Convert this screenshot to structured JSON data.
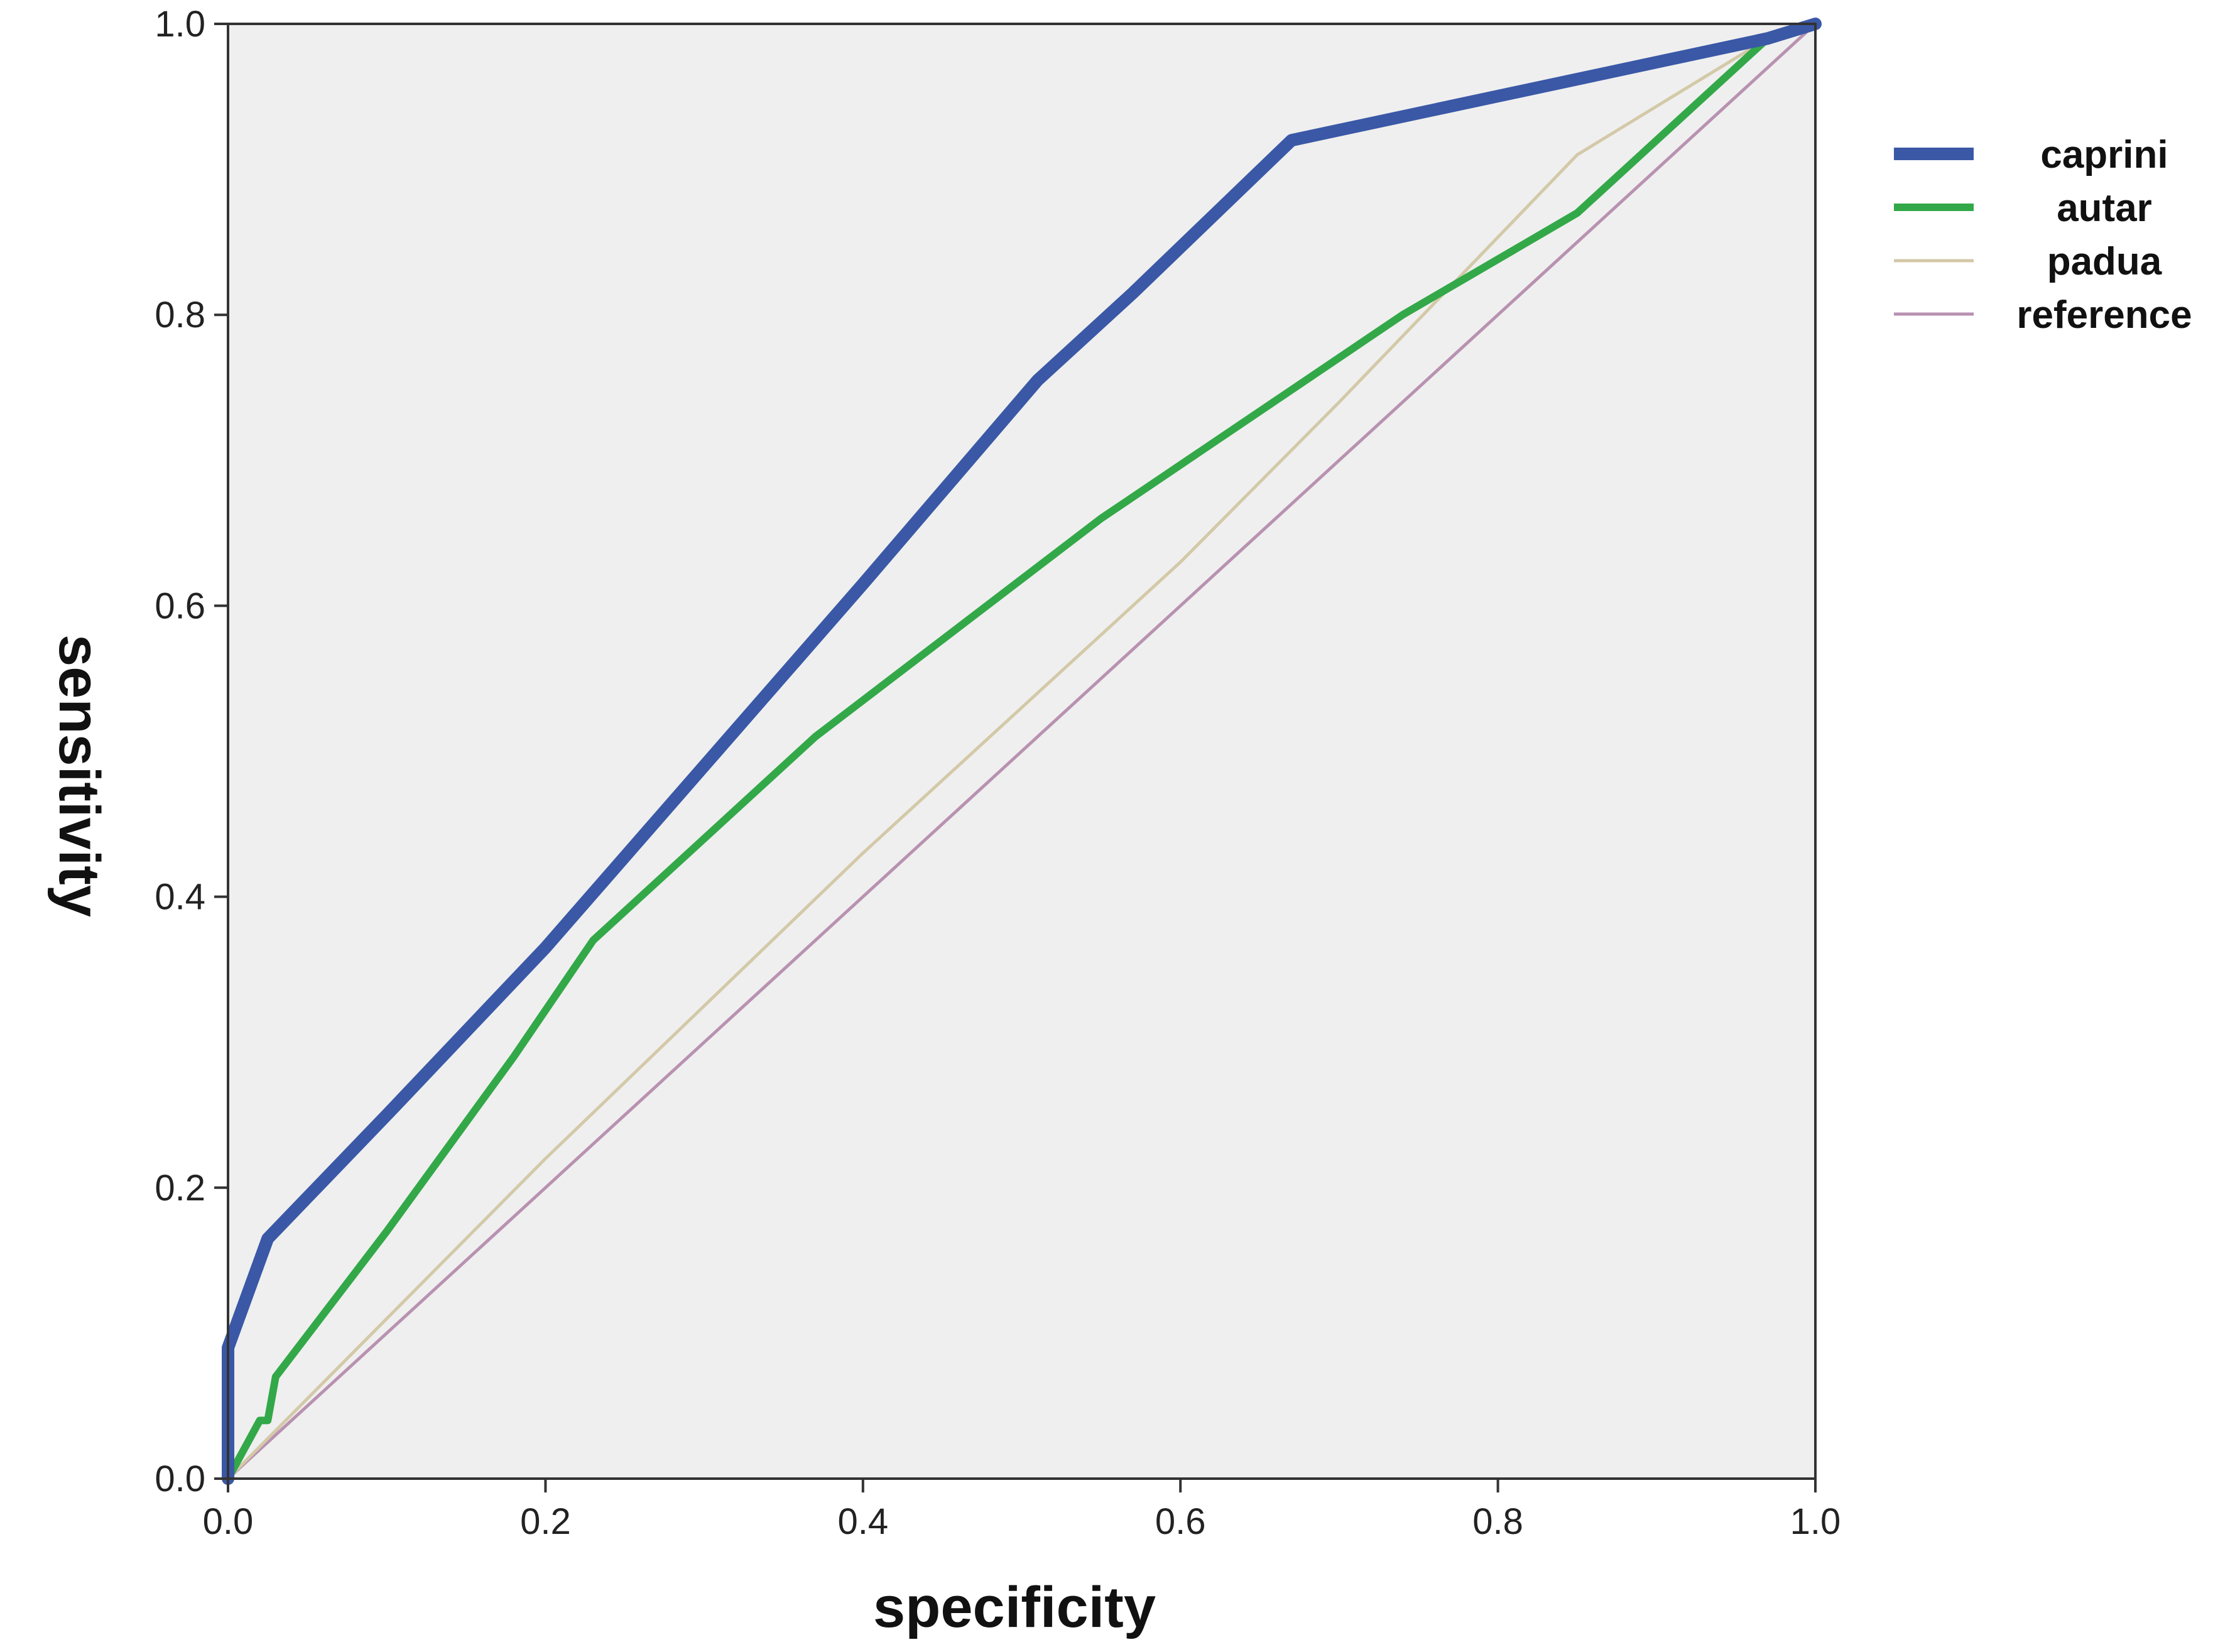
{
  "chart_data": {
    "type": "line",
    "title": "",
    "xlabel": "specificity",
    "ylabel": "sensitivity",
    "xlim": [
      0,
      1
    ],
    "ylim": [
      0,
      1
    ],
    "x_ticks": [
      0.0,
      0.2,
      0.4,
      0.6,
      0.8,
      1.0
    ],
    "y_ticks": [
      0.0,
      0.2,
      0.4,
      0.6,
      0.8,
      1.0
    ],
    "x_tick_labels": [
      "0.0",
      "0.2",
      "0.4",
      "0.6",
      "0.8",
      "1.0"
    ],
    "y_tick_labels": [
      "0.0",
      "0.2",
      "0.4",
      "0.6",
      "0.8",
      "1.0"
    ],
    "grid": false,
    "legend_position": "top-right",
    "plot_background": "#efefef",
    "series": [
      {
        "name": "caprini",
        "color": "#3a58a6",
        "width": "thick",
        "x": [
          0.0,
          0.0,
          0.025,
          0.1,
          0.2,
          0.3,
          0.4,
          0.51,
          0.57,
          0.67,
          0.97,
          1.0
        ],
        "y": [
          0.0,
          0.09,
          0.165,
          0.25,
          0.365,
          0.49,
          0.615,
          0.755,
          0.815,
          0.92,
          0.99,
          1.0
        ]
      },
      {
        "name": "autar",
        "color": "#33a848",
        "width": "medium",
        "x": [
          0.0,
          0.02,
          0.025,
          0.03,
          0.1,
          0.18,
          0.23,
          0.37,
          0.55,
          0.74,
          0.85,
          0.97,
          1.0
        ],
        "y": [
          0.0,
          0.04,
          0.04,
          0.07,
          0.17,
          0.29,
          0.37,
          0.51,
          0.66,
          0.8,
          0.87,
          0.99,
          1.0
        ]
      },
      {
        "name": "padua",
        "color": "#d3c9a8",
        "width": "thin",
        "x": [
          0.0,
          0.2,
          0.4,
          0.6,
          0.7,
          0.85,
          0.97,
          1.0
        ],
        "y": [
          0.0,
          0.22,
          0.43,
          0.63,
          0.74,
          0.91,
          0.99,
          1.0
        ]
      },
      {
        "name": "reference",
        "color": "#b892b0",
        "width": "thin",
        "x": [
          0.0,
          1.0
        ],
        "y": [
          0.0,
          1.0
        ]
      }
    ]
  }
}
